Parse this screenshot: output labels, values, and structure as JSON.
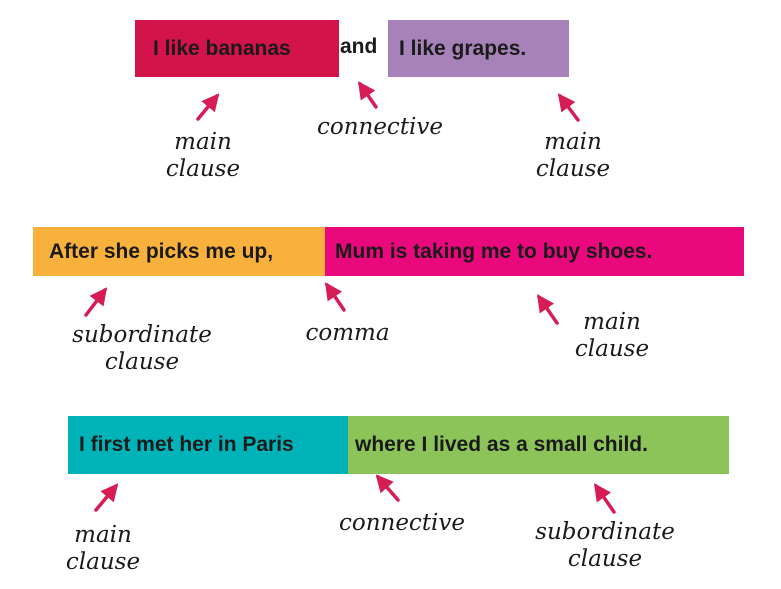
{
  "colors": {
    "crimson": "#d3144a",
    "purple": "#a682b9",
    "orange": "#f9b13e",
    "magenta": "#e9097c",
    "teal": "#00b3b9",
    "green": "#8cc459",
    "arrow": "#d61c55"
  },
  "sentences": [
    {
      "parts": [
        {
          "text": "I like bananas",
          "color": "#d3144a"
        },
        {
          "text": "and"
        },
        {
          "text": "I like grapes.",
          "color": "#a682b9"
        }
      ],
      "labels": [
        {
          "lines": [
            "main",
            "clause"
          ]
        },
        {
          "lines": [
            "connective"
          ]
        },
        {
          "lines": [
            "main",
            "clause"
          ]
        }
      ]
    },
    {
      "parts": [
        {
          "text": "After she picks me up,",
          "color": "#f9b13e"
        },
        {
          "text": "Mum is taking me to buy shoes.",
          "color": "#e9097c"
        }
      ],
      "labels": [
        {
          "lines": [
            "subordinate",
            "clause"
          ]
        },
        {
          "lines": [
            "comma"
          ]
        },
        {
          "lines": [
            "main",
            "clause"
          ]
        }
      ]
    },
    {
      "parts": [
        {
          "text": "I first met her in Paris",
          "color": "#00b3b9"
        },
        {
          "text": "where I lived as a small child.",
          "color": "#8cc459"
        }
      ],
      "labels": [
        {
          "lines": [
            "main",
            "clause"
          ]
        },
        {
          "lines": [
            "connective"
          ]
        },
        {
          "lines": [
            "subordinate",
            "clause"
          ]
        }
      ]
    }
  ]
}
